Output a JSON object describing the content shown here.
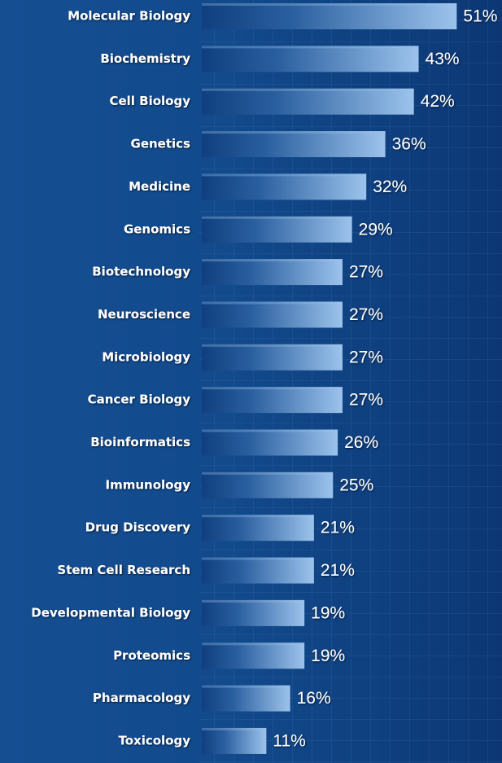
{
  "chart_data": {
    "type": "barh",
    "categories": [
      "Molecular Biology",
      "Biochemistry",
      "Cell Biology",
      "Genetics",
      "Medicine",
      "Genomics",
      "Biotechnology",
      "Neuroscience",
      "Microbiology",
      "Cancer Biology",
      "Bioinformatics",
      "Immunology",
      "Drug Discovery",
      "Stem Cell Research",
      "Developmental Biology",
      "Proteomics",
      "Pharmacology",
      "Toxicology"
    ],
    "values": [
      51,
      43,
      42,
      36,
      32,
      29,
      27,
      27,
      27,
      27,
      26,
      25,
      21,
      21,
      19,
      19,
      16,
      11
    ],
    "value_labels": [
      "51%",
      "43%",
      "42%",
      "36%",
      "32%",
      "29%",
      "27%",
      "27%",
      "27%",
      "27%",
      "26%",
      "25%",
      "21%",
      "21%",
      "19%",
      "19%",
      "16%",
      "11%"
    ],
    "color": "#9cc3ec"
  }
}
